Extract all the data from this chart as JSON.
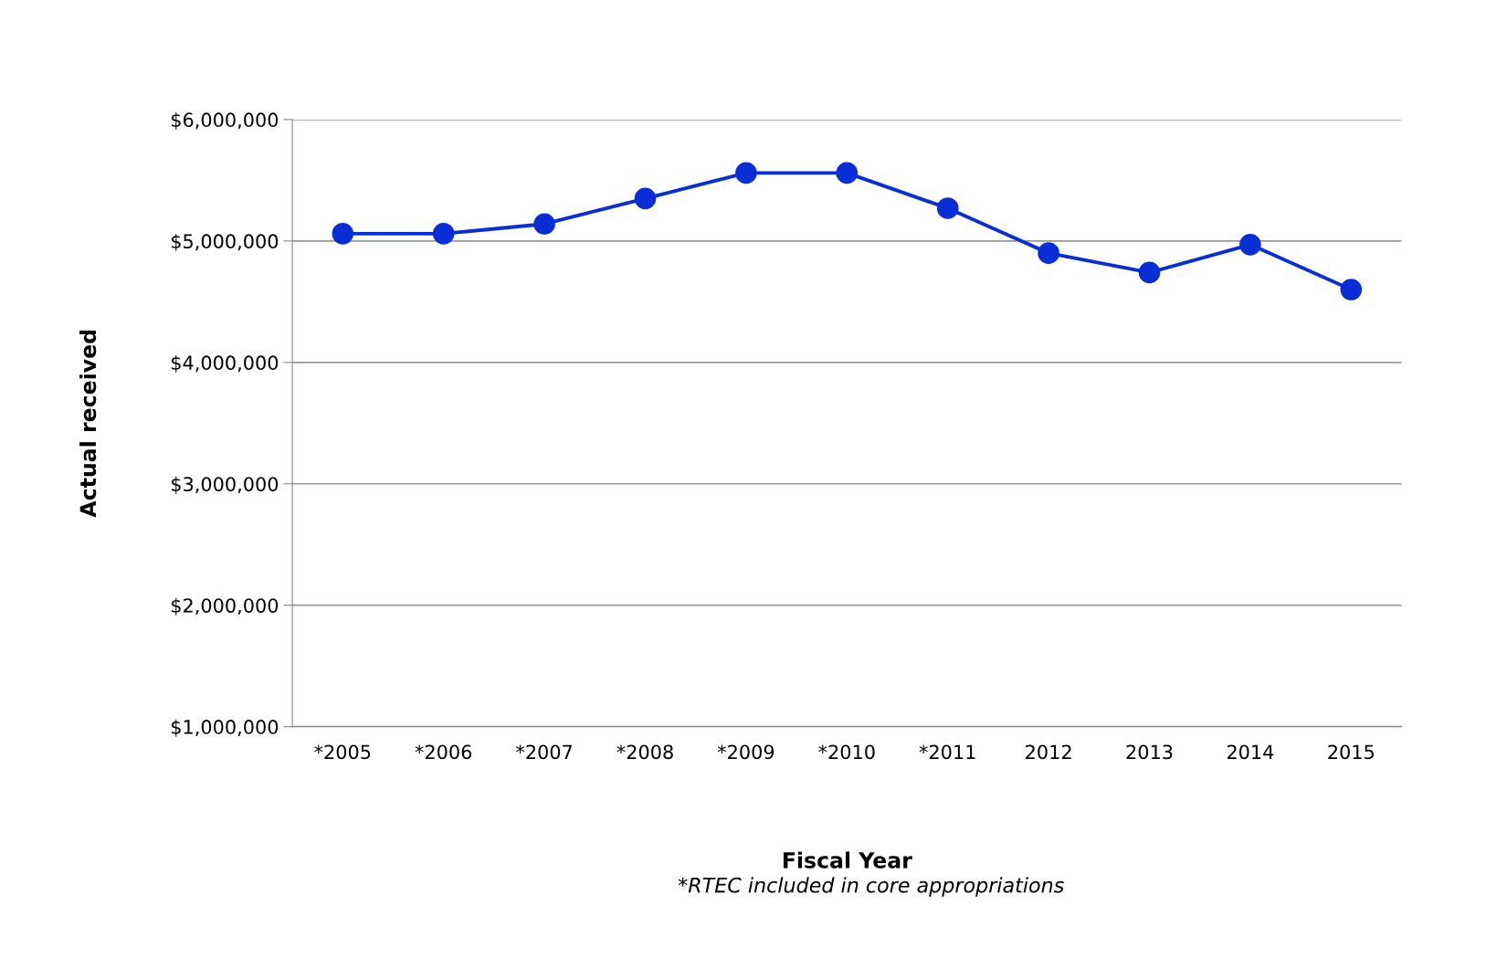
{
  "chart_data": {
    "type": "line",
    "xlabel": "Fiscal Year",
    "ylabel": "Actual received",
    "categories": [
      "*2005",
      "*2006",
      "*2007",
      "*2008",
      "*2009",
      "*2010",
      "*2011",
      "2012",
      "2013",
      "2014",
      "2015"
    ],
    "series": [
      {
        "color": "#0a2ed6",
        "values": [
          5060000,
          5060000,
          5140000,
          5350000,
          5560000,
          5560000,
          5270000,
          4900000,
          4740000,
          4970000,
          4600000
        ]
      }
    ],
    "ylim": [
      1000000,
      6000000
    ],
    "yticks": [
      {
        "value": 1000000,
        "label": "$1,000,000"
      },
      {
        "value": 2000000,
        "label": "$2,000,000"
      },
      {
        "value": 3000000,
        "label": "$3,000,000"
      },
      {
        "value": 4000000,
        "label": "$4,000,000"
      },
      {
        "value": 5000000,
        "label": "$5,000,000"
      },
      {
        "value": 6000000,
        "label": "$6,000,000"
      }
    ],
    "grid": "y",
    "marker": "circle",
    "line_style": "solid",
    "legend": false,
    "annotations": [
      "*RTEC included in core appropriations"
    ]
  }
}
